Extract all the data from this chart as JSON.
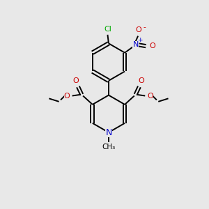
{
  "bg_color": "#e8e8e8",
  "bond_color": "#000000",
  "n_color": "#0000cc",
  "o_color": "#cc0000",
  "cl_color": "#00aa00",
  "fig_size": [
    3.0,
    3.0
  ],
  "dpi": 100,
  "xlim": [
    0,
    10
  ],
  "ylim": [
    0,
    10
  ],
  "lw": 1.4,
  "fs": 7.5
}
